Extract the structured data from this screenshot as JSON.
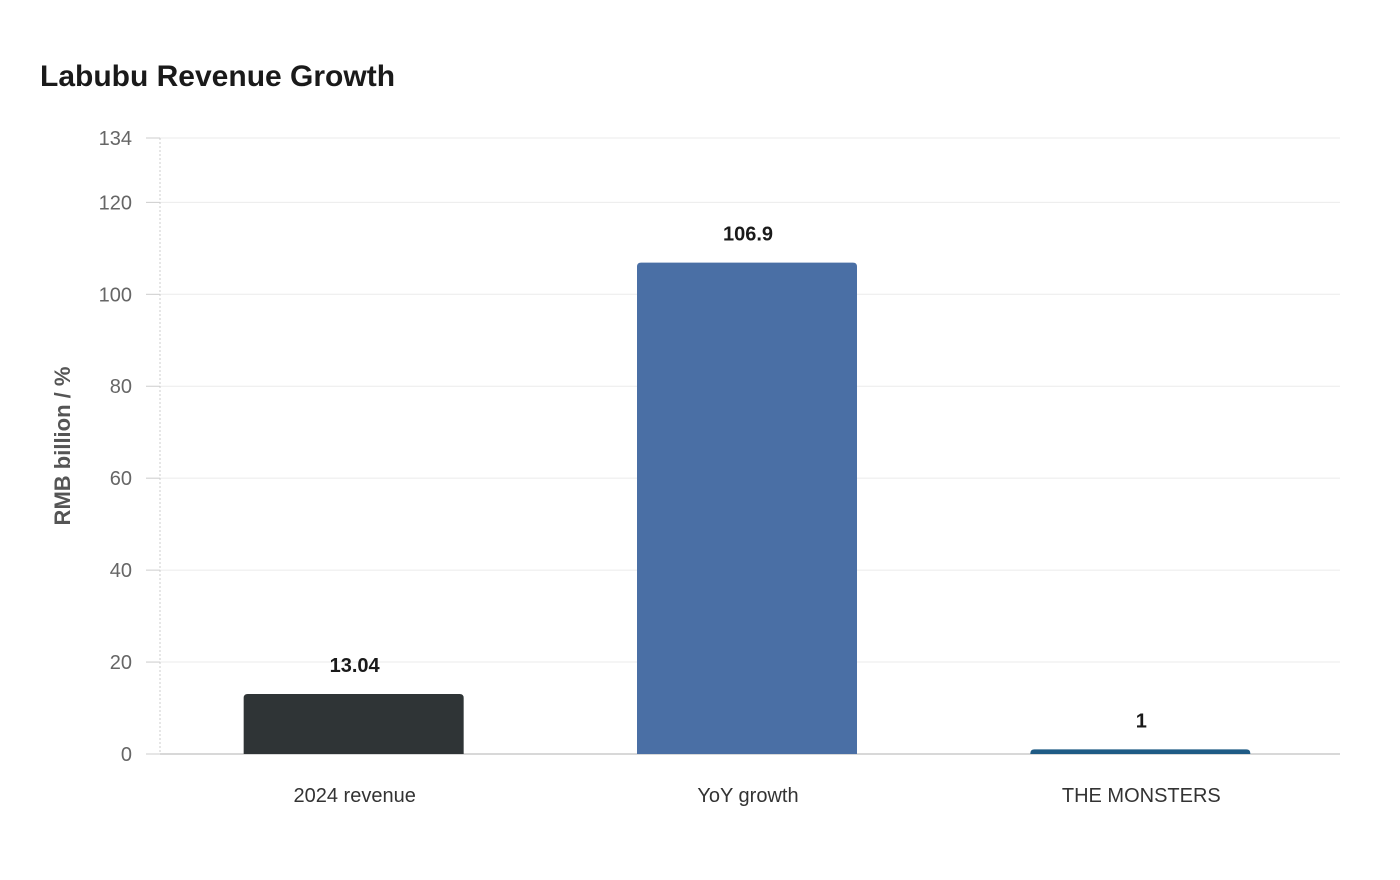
{
  "chart_data": {
    "type": "bar",
    "title": "Labubu Revenue Growth",
    "xlabel": "",
    "ylabel": "RMB billion / %",
    "categories": [
      "2024 revenue",
      "YoY growth",
      "THE MONSTERS"
    ],
    "values": [
      13.04,
      106.9,
      1
    ],
    "data_labels": [
      "13.04",
      "106.9",
      "1"
    ],
    "colors": [
      "#2f3436",
      "#4a6fa5",
      "#1f5b85"
    ],
    "ylim": [
      0,
      134
    ],
    "yticks": [
      0,
      20,
      40,
      60,
      80,
      100,
      120,
      134
    ],
    "grid": true
  }
}
